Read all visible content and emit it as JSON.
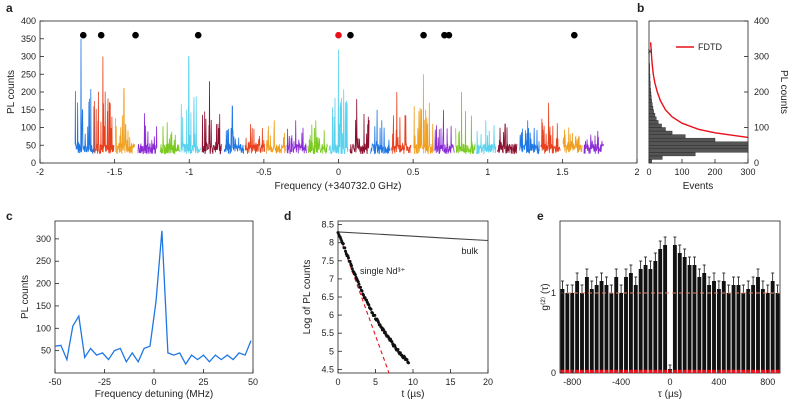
{
  "figure": {
    "panels": [
      {
        "label": "a",
        "type": "line"
      },
      {
        "label": "b",
        "type": "bar"
      },
      {
        "label": "c",
        "type": "line"
      },
      {
        "label": "d",
        "type": "scatter"
      },
      {
        "label": "e",
        "type": "bar"
      }
    ]
  },
  "chart_data": [
    {
      "panel": "a",
      "type": "line",
      "xlabel": "Frequency (+340732.0 GHz)",
      "ylabel": "PL counts",
      "xlim": [
        -2,
        2
      ],
      "ylim": [
        0,
        400
      ],
      "xticks": [
        "-2",
        "-1.5",
        "-1",
        "-0.5",
        "0",
        "0.5",
        "1",
        "1.5",
        "2"
      ],
      "yticks": [
        "0",
        "50",
        "100",
        "150",
        "200",
        "250",
        "300",
        "350",
        "400"
      ],
      "scan_centers": [
        -1.7,
        -1.57,
        -1.43,
        -1.28,
        -1.13,
        -0.99,
        -0.85,
        -0.7,
        -0.56,
        -0.42,
        -0.28,
        -0.14,
        0.0,
        0.14,
        0.28,
        0.42,
        0.57,
        0.71,
        0.85,
        0.99,
        1.13,
        1.28,
        1.42,
        1.57,
        1.71
      ],
      "scan_peaks": [
        350,
        300,
        210,
        140,
        115,
        300,
        230,
        160,
        110,
        120,
        120,
        120,
        320,
        180,
        150,
        200,
        250,
        150,
        200,
        120,
        110,
        120,
        170,
        100,
        80
      ],
      "scan_colors": [
        "#1f77e4",
        "#e8411e",
        "#f0a020",
        "#8a2bd4",
        "#7ac91e",
        "#5ad2ee",
        "#8a1030",
        "#1f77e4",
        "#e8411e",
        "#f0a020",
        "#8a2bd4",
        "#7ac91e",
        "#5ad2ee",
        "#8a1030",
        "#1f77e4",
        "#e8411e",
        "#f0a020",
        "#8a2bd4",
        "#7ac91e",
        "#5ad2ee",
        "#8a1030",
        "#1f77e4",
        "#e8411e",
        "#f0a020",
        "#8a2bd4"
      ],
      "dots": [
        {
          "x": -1.71,
          "color": "#000000"
        },
        {
          "x": -1.59,
          "color": "#000000"
        },
        {
          "x": -1.36,
          "color": "#000000"
        },
        {
          "x": -0.94,
          "color": "#000000"
        },
        {
          "x": 0.0,
          "color": "#e8101a"
        },
        {
          "x": 0.08,
          "color": "#000000"
        },
        {
          "x": 0.57,
          "color": "#000000"
        },
        {
          "x": 0.71,
          "color": "#000000"
        },
        {
          "x": 0.74,
          "color": "#000000"
        },
        {
          "x": 1.58,
          "color": "#000000"
        }
      ],
      "dot_y": 360
    },
    {
      "panel": "b",
      "type": "bar",
      "orientation": "horizontal",
      "xlabel": "Events",
      "ylabel": "PL counts",
      "xlim": [
        0,
        300
      ],
      "ylim": [
        0,
        400
      ],
      "xticks": [
        "0",
        "100",
        "200",
        "300"
      ],
      "yticks": [
        "0",
        "100",
        "200",
        "300",
        "400"
      ],
      "bin_centers": [
        5,
        15,
        25,
        35,
        45,
        55,
        65,
        75,
        85,
        95,
        105,
        115,
        125,
        135,
        145,
        155,
        165,
        175,
        185,
        195,
        205,
        215,
        225,
        235,
        245,
        255,
        265,
        275,
        285,
        295,
        305,
        315
      ],
      "counts": [
        8,
        40,
        140,
        300,
        300,
        300,
        200,
        110,
        70,
        50,
        38,
        28,
        22,
        18,
        14,
        12,
        10,
        8,
        7,
        6,
        5,
        4,
        4,
        3,
        3,
        2,
        2,
        2,
        1,
        1,
        1,
        1
      ],
      "fit": {
        "name": "FDTD",
        "color": "#e8101a",
        "x": [
          300,
          200,
          150,
          100,
          70,
          50,
          35,
          25,
          18,
          13,
          10,
          8,
          6,
          5
        ],
        "y": [
          72,
          85,
          95,
          112,
          130,
          150,
          175,
          200,
          225,
          250,
          275,
          300,
          325,
          340
        ]
      },
      "marker": {
        "x": 3,
        "y": 312,
        "symbol": "×"
      }
    },
    {
      "panel": "c",
      "type": "line",
      "xlabel": "Frequency detuning (MHz)",
      "ylabel": "PL counts",
      "xlim": [
        -50,
        50
      ],
      "ylim": [
        0,
        340
      ],
      "xticks": [
        "-50",
        "-25",
        "0",
        "25",
        "50"
      ],
      "yticks": [
        "50",
        "100",
        "150",
        "200",
        "250",
        "300"
      ],
      "color": "#1f77e4",
      "x": [
        -50,
        -47,
        -44,
        -41,
        -38,
        -35,
        -32,
        -29,
        -26,
        -23,
        -20,
        -17,
        -14,
        -11,
        -8,
        -5,
        -2,
        1,
        4,
        7,
        10,
        13,
        16,
        19,
        22,
        25,
        28,
        31,
        34,
        37,
        40,
        43,
        46,
        49
      ],
      "y": [
        60,
        62,
        30,
        105,
        127,
        35,
        55,
        40,
        45,
        30,
        50,
        55,
        25,
        45,
        25,
        55,
        60,
        160,
        318,
        45,
        40,
        45,
        20,
        40,
        30,
        40,
        25,
        40,
        30,
        40,
        30,
        45,
        40,
        72
      ]
    },
    {
      "panel": "d",
      "type": "scatter",
      "xlabel": "t (µs)",
      "ylabel": "Log of PL counts",
      "xlim": [
        0,
        20
      ],
      "ylim": [
        4.4,
        8.6
      ],
      "xticks": [
        "0",
        "5",
        "10",
        "15",
        "20"
      ],
      "yticks": [
        "4.5",
        "5",
        "5.5",
        "6",
        "6.5",
        "7",
        "7.5",
        "8",
        "8.5"
      ],
      "series": [
        {
          "name": "bulk",
          "x": [
            0,
            5,
            10,
            15,
            20
          ],
          "y": [
            8.3,
            8.24,
            8.18,
            8.12,
            8.06
          ]
        },
        {
          "name": "single Nd³⁺",
          "x": [
            0.0,
            0.5,
            1.0,
            1.5,
            2.0,
            2.5,
            3.0,
            3.5,
            4.0,
            4.5,
            5.0,
            5.5,
            6.0,
            6.5,
            7.0,
            7.5,
            8.0,
            8.5,
            9.0,
            9.5
          ],
          "y": [
            8.3,
            8.05,
            7.78,
            7.5,
            7.25,
            7.0,
            6.75,
            6.52,
            6.3,
            6.1,
            5.92,
            5.75,
            5.6,
            5.45,
            5.3,
            5.15,
            5.02,
            4.9,
            4.78,
            4.66
          ]
        },
        {
          "name": "fit",
          "x": [
            0,
            6.8
          ],
          "y": [
            8.3,
            4.4
          ]
        }
      ]
    },
    {
      "panel": "e",
      "type": "bar",
      "xlabel": "τ (µs)",
      "ylabel": "g⁽²⁾ (τ)",
      "xlim": [
        -900,
        900
      ],
      "ylim": [
        0,
        1.9
      ],
      "xticks": [
        "-800",
        "-400",
        "0",
        "400",
        "800"
      ],
      "yticks": [
        "0",
        "1"
      ],
      "bin_width": 40,
      "x": [
        -880,
        -840,
        -800,
        -760,
        -720,
        -680,
        -640,
        -600,
        -560,
        -520,
        -480,
        -440,
        -400,
        -360,
        -320,
        -280,
        -240,
        -200,
        -160,
        -120,
        -80,
        -40,
        0,
        40,
        80,
        120,
        160,
        200,
        240,
        280,
        320,
        360,
        400,
        440,
        480,
        520,
        560,
        600,
        640,
        680,
        720,
        760,
        800,
        840,
        880
      ],
      "values": [
        1.05,
        1.0,
        1.0,
        1.15,
        1.0,
        1.2,
        1.05,
        1.1,
        1.15,
        1.1,
        1.0,
        1.2,
        1.0,
        1.2,
        1.25,
        1.1,
        1.3,
        1.35,
        1.3,
        1.4,
        1.55,
        1.6,
        0.05,
        1.6,
        1.5,
        1.45,
        1.35,
        1.35,
        1.2,
        1.25,
        1.1,
        1.15,
        1.05,
        1.15,
        1.0,
        1.1,
        1.1,
        1.0,
        1.05,
        1.1,
        1.2,
        1.05,
        1.0,
        1.15,
        1.0
      ],
      "errors": [
        0.1,
        0.1,
        0.1,
        0.1,
        0.1,
        0.1,
        0.1,
        0.1,
        0.1,
        0.1,
        0.1,
        0.1,
        0.1,
        0.1,
        0.1,
        0.1,
        0.1,
        0.1,
        0.1,
        0.1,
        0.1,
        0.1,
        0.05,
        0.1,
        0.1,
        0.1,
        0.1,
        0.1,
        0.1,
        0.1,
        0.1,
        0.1,
        0.1,
        0.1,
        0.1,
        0.1,
        0.1,
        0.1,
        0.1,
        0.1,
        0.1,
        0.1,
        0.1,
        0.1,
        0.1
      ],
      "background_level": 0.04,
      "reference_line": 1.0,
      "bar_color": "#111111",
      "background_color": "#e8101a"
    }
  ]
}
